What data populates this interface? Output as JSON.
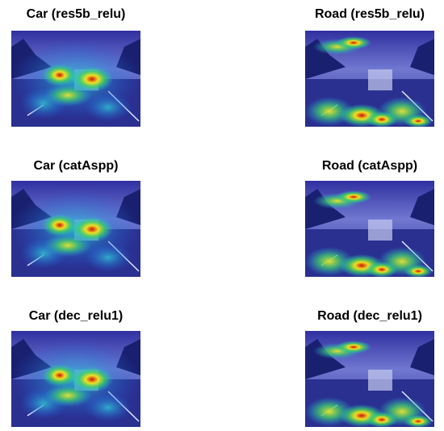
{
  "panels": [
    {
      "title": "Car (res5b_relu)"
    },
    {
      "title": "Road (res5b_relu)"
    },
    {
      "title": "Car (catAspp)"
    },
    {
      "title": "Road (catAspp)"
    },
    {
      "title": "Car (dec_relu1)"
    },
    {
      "title": "Road (dec_relu1)"
    }
  ]
}
